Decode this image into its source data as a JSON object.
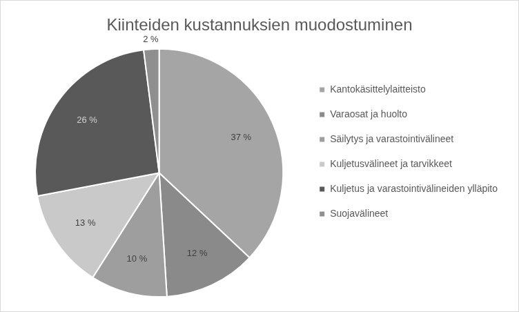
{
  "chart_data": {
    "type": "pie",
    "title": "Kiinteiden kustannuksien muodostuminen",
    "categories": [
      "Kantokäsittelylaitteisto",
      "Varaosat ja huolto",
      "Säilytys ja varastointivälineet",
      "Kuljetusvälineet ja tarvikkeet",
      "Kuljetus ja varastointivälineiden ylläpito",
      "Suojavälineet"
    ],
    "values": [
      37,
      12,
      10,
      13,
      26,
      2
    ],
    "value_labels": [
      "37 %",
      "12 %",
      "10 %",
      "13 %",
      "26 %",
      "2 %"
    ],
    "colors": [
      "#a5a5a5",
      "#8a8a8a",
      "#9e9e9e",
      "#c9c9c9",
      "#595959",
      "#8f8f8f"
    ],
    "legend": "right",
    "data_labels": true
  }
}
